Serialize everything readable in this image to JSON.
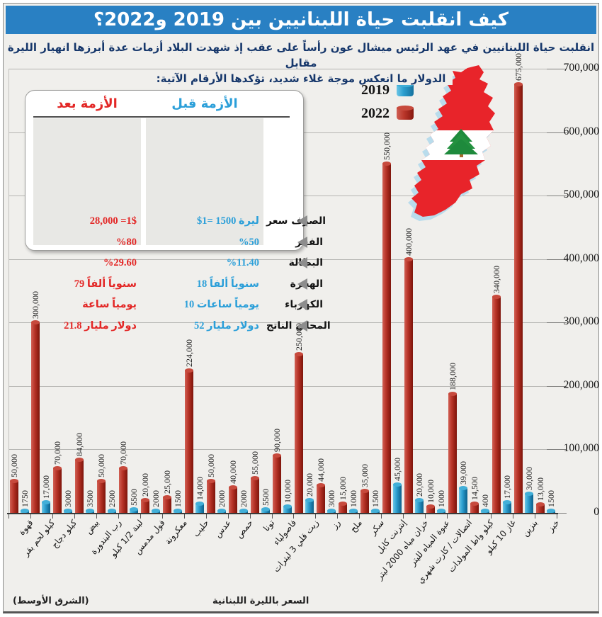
{
  "page": {
    "title": "كيف انقلبت حياة اللبنانيين بين 2019 و2022؟",
    "subtitle_line1": "انقلبت حياة اللبنانيين في عهد الرئيس ميشال عون رأساً على عقب إذ شهدت البلاد أزمات عدة أبرزها انهيار الليرة مقابل",
    "subtitle_line2": "الدولار ما انعكس موجة غلاء شديد، تؤكدها الأرقام الآتية:",
    "source": "(الشرق الأوسط)",
    "axis_note": "السعر بالليرة اللبنانية"
  },
  "colors": {
    "title_bar": "#2980c3",
    "bar_red": "#b5352b",
    "bar_blue": "#2b9ecf",
    "before_text": "#2b9fd9",
    "after_text": "#e32726"
  },
  "legend": [
    {
      "label": "2019",
      "color": "#2b9ecf"
    },
    {
      "label": "2022",
      "color": "#b5352b"
    }
  ],
  "comparison_box": {
    "after_header": "بعد الأزمة",
    "before_header": "قبل الأزمة",
    "rows": [
      {
        "label": "سعر الصرف",
        "before": "$1= 1500 ليرة",
        "after": "28,000 =1$"
      },
      {
        "label": "الفقر",
        "before": "%50",
        "after": "%80"
      },
      {
        "label": "البطالة",
        "before": "%11.40",
        "after": "%29.60"
      },
      {
        "label": "الهجرة",
        "before": "18 ألفاً سنوياً",
        "after": "79 ألفاً سنوياً"
      },
      {
        "label": "الكهرباء",
        "before": "10 ساعات يومياً",
        "after": "ساعة يومياً"
      },
      {
        "label": "الناتج المحلي",
        "before": "52 مليار دولار",
        "after": "21.8 مليار دولار"
      }
    ]
  },
  "chart_data": {
    "type": "bar",
    "title": "كيف انقلبت حياة اللبنانيين بين 2019 و2022؟",
    "xlabel": "السعر بالليرة اللبنانية",
    "ylabel": "",
    "ylim": [
      0,
      700000
    ],
    "grid": true,
    "legend_position": "top-right",
    "yticks": [
      {
        "value": 700000,
        "label": "700,000"
      },
      {
        "value": 600000,
        "label": "600,000"
      },
      {
        "value": 500000,
        "label": "500,000"
      },
      {
        "value": 400000,
        "label": "400,000"
      },
      {
        "value": 300000,
        "label": "300,000"
      },
      {
        "value": 200000,
        "label": "200,000"
      },
      {
        "value": 100000,
        "label": "100,000"
      },
      {
        "value": 0,
        "label": "0"
      }
    ],
    "categories": [
      "قهوة",
      "كيلو لحم بقر",
      "كيلو دجاج",
      "بيض",
      "رب البندورة",
      "لبنة 1/2 كيلو",
      "فول مدمس",
      "معكرونة",
      "حليب",
      "عدس",
      "حمص",
      "تونا",
      "فاصولياء",
      "زيت قلي 3 ليترات",
      "رز",
      "ملح",
      "سكر",
      "إنترنت كابل",
      "خزان مياه 2000 ليتر",
      "عبوة المياه لليتر",
      "اتصالات / كارت شهري",
      "كيلو واط المولدات",
      "غاز 10 كيلو",
      "بنزين",
      "خبز"
    ],
    "series": [
      {
        "name": "2022",
        "color": "#b5352b",
        "values": [
          50000,
          300000,
          70000,
          84000,
          50000,
          70000,
          20000,
          25000,
          224000,
          50000,
          40000,
          55000,
          90000,
          250000,
          44000,
          15000,
          35000,
          550000,
          400000,
          10000,
          188000,
          14500,
          340000,
          675000,
          13000
        ],
        "labels": [
          "50,000",
          "300,000",
          "70,000",
          "84,000",
          "50,000",
          "70,000",
          "20,000",
          "25,000",
          "224,000",
          "50,000",
          "40,000",
          "55,000",
          "90,000",
          "250,000",
          "44,000",
          "15,000",
          "35,000",
          "550,000",
          "400,000",
          "10,000",
          "188,000",
          "14,500",
          "340,000",
          "675,000",
          "13,000"
        ]
      },
      {
        "name": "2019",
        "color": "#2b9ecf",
        "values": [
          1750,
          17000,
          3000,
          3500,
          2500,
          5500,
          2000,
          1500,
          14000,
          2000,
          2000,
          5500,
          10000,
          20000,
          3000,
          1000,
          1500,
          45000,
          20000,
          1000,
          39000,
          400,
          17000,
          30000,
          1500
        ],
        "labels": [
          "1750",
          "17,000",
          "3000",
          "3500",
          "2500",
          "5500",
          "2000",
          "1500",
          "14,000",
          "2000",
          "2000",
          "5500",
          "10,000",
          "20,000",
          "3000",
          "1000",
          "1500",
          "45,000",
          "20,000",
          "1000",
          "39,000",
          "400",
          "17,000",
          "30,000",
          "1500"
        ]
      }
    ]
  }
}
